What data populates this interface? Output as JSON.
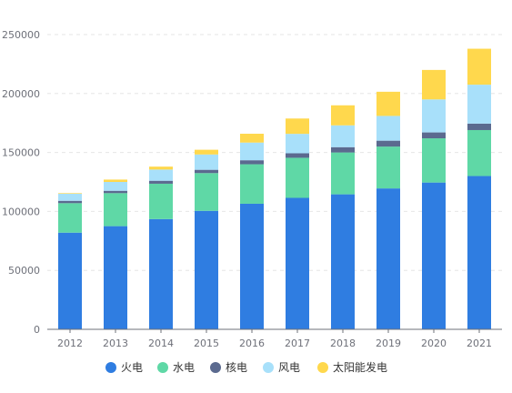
{
  "chart_data": {
    "type": "bar",
    "stacked": true,
    "title": "",
    "xlabel": "",
    "ylabel": "",
    "ylim": [
      0,
      250000
    ],
    "yticks": [
      0,
      50000,
      100000,
      150000,
      200000,
      250000
    ],
    "grid": true,
    "legend_position": "bottom",
    "categories": [
      "2012",
      "2013",
      "2014",
      "2015",
      "2016",
      "2017",
      "2018",
      "2019",
      "2020",
      "2021"
    ],
    "series": [
      {
        "name": "火电",
        "color": "#2f7de1",
        "values": [
          82000,
          87500,
          93500,
          100500,
          106500,
          111500,
          114500,
          119500,
          124500,
          130000
        ]
      },
      {
        "name": "水电",
        "color": "#5fd8a6",
        "values": [
          25000,
          28000,
          30000,
          32000,
          33500,
          34000,
          35500,
          35500,
          37500,
          39000
        ]
      },
      {
        "name": "核电",
        "color": "#5b6a8f",
        "values": [
          2000,
          2000,
          2500,
          2800,
          3400,
          3800,
          4500,
          5000,
          5000,
          5500
        ]
      },
      {
        "name": "风电",
        "color": "#a8e0fa",
        "values": [
          6000,
          7500,
          9500,
          13000,
          15000,
          16500,
          18500,
          21000,
          28000,
          33000
        ]
      },
      {
        "name": "太阳能发电",
        "color": "#ffd84d",
        "values": [
          500,
          2000,
          2500,
          4000,
          7500,
          13000,
          17000,
          20500,
          25000,
          30500
        ]
      }
    ]
  }
}
